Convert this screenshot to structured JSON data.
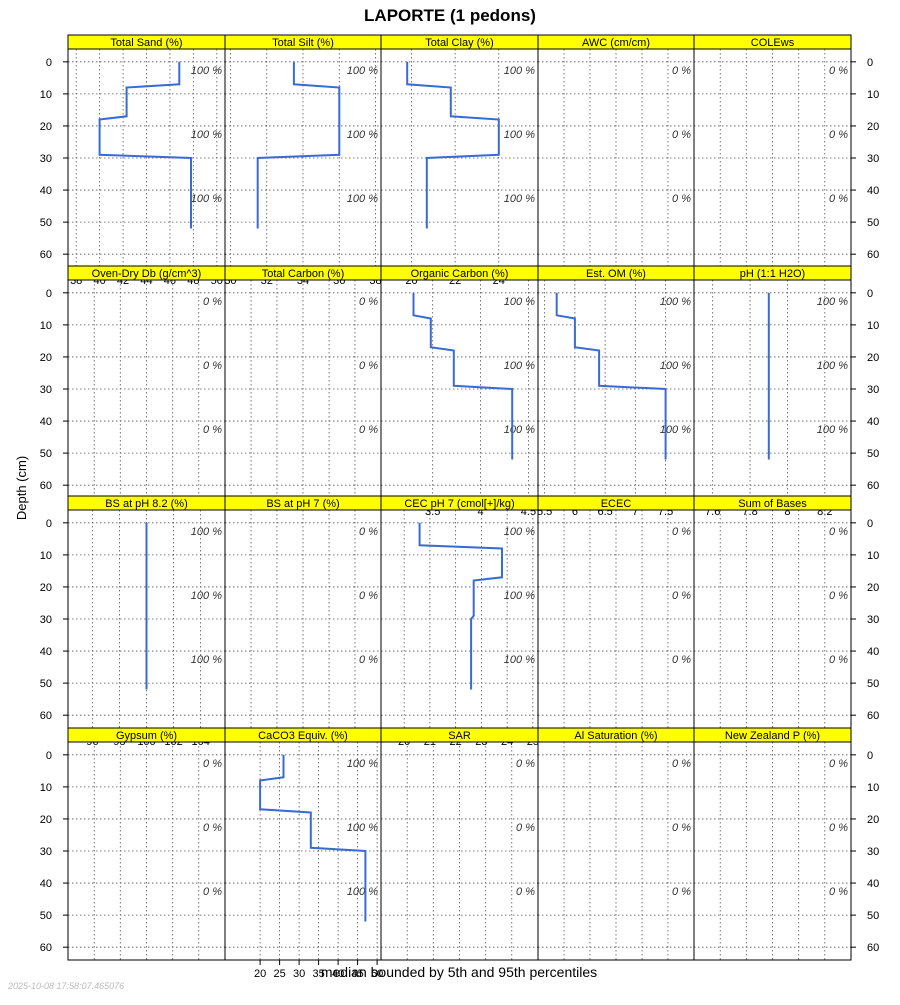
{
  "title": "LAPORTE (1 pedons)",
  "ylabel": "Depth (cm)",
  "xlabel": "median bounded by 5th and 95th percentiles",
  "timestamp": "2025-10-08 17:58:07.465076",
  "colors": {
    "strip_fill": "#ffff00",
    "line": "#3a6bd1",
    "grid": "#555555",
    "frame": "#000000",
    "pct_text": "#333333",
    "timestamp_text": "#bbbbbb"
  },
  "chart_data": {
    "type": "line",
    "layout": "lattice 5 columns x 4 rows",
    "y_axis": {
      "label": "Depth (cm)",
      "ylim": [
        64,
        -4
      ],
      "ticks": [
        0,
        10,
        20,
        30,
        40,
        50,
        60
      ]
    },
    "grid": true,
    "pct_label_depths": [
      2.5,
      22.5,
      42.5
    ],
    "panels": [
      {
        "title": "Total Sand (%)",
        "xlim": [
          37.3,
          50.7
        ],
        "xticks": [
          38,
          40,
          42,
          44,
          46,
          48,
          50
        ],
        "x": [
          46.8,
          46.8,
          42.3,
          42.3,
          40.0,
          40.0,
          47.8,
          47.8
        ],
        "y": [
          0,
          7,
          8,
          17,
          18,
          29,
          30,
          52
        ],
        "pct_labels": [
          "100 %",
          "100 %",
          "100 %"
        ]
      },
      {
        "title": "Total Silt (%)",
        "xlim": [
          29.7,
          38.3
        ],
        "xticks": [
          30,
          32,
          34,
          36,
          38
        ],
        "x": [
          33.5,
          33.5,
          36.0,
          36.0,
          36.0,
          36.0,
          31.5,
          31.5
        ],
        "y": [
          0,
          7,
          8,
          17,
          18,
          29,
          30,
          52
        ],
        "pct_labels": [
          "100 %",
          "100 %",
          "100 %"
        ]
      },
      {
        "title": "Total Clay (%)",
        "xlim": [
          18.6,
          25.8
        ],
        "xticks": [
          20,
          22,
          24
        ],
        "x": [
          19.8,
          19.8,
          21.8,
          21.8,
          24.0,
          24.0,
          20.7,
          20.7
        ],
        "y": [
          0,
          7,
          8,
          17,
          18,
          29,
          30,
          52
        ],
        "pct_labels": [
          "100 %",
          "100 %",
          "100 %"
        ]
      },
      {
        "title": "AWC (cm/cm)",
        "xlim": [
          0,
          1
        ],
        "xticks": [],
        "x": [],
        "y": [],
        "pct_labels": [
          "0 %",
          "0 %",
          "0 %"
        ]
      },
      {
        "title": "COLEws",
        "xlim": [
          0,
          1
        ],
        "xticks": [],
        "x": [],
        "y": [],
        "pct_labels": [
          "0 %",
          "0 %",
          "0 %"
        ]
      },
      {
        "title": "Oven-Dry Db (g/cm^3)",
        "xlim": [
          0,
          1
        ],
        "xticks": [],
        "x": [],
        "y": [],
        "pct_labels": [
          "0 %",
          "0 %",
          "0 %"
        ]
      },
      {
        "title": "Total Carbon (%)",
        "xlim": [
          0,
          1
        ],
        "xticks": [],
        "x": [],
        "y": [],
        "pct_labels": [
          "0 %",
          "0 %",
          "0 %"
        ]
      },
      {
        "title": "Organic Carbon (%)",
        "xlim": [
          2.96,
          4.6
        ],
        "xticks": [
          3.5,
          4.0,
          4.5
        ],
        "x": [
          3.3,
          3.3,
          3.48,
          3.48,
          3.72,
          3.72,
          4.33,
          4.33
        ],
        "y": [
          0,
          7,
          8,
          17,
          18,
          29,
          30,
          52
        ],
        "pct_labels": [
          "100 %",
          "100 %",
          "100 %"
        ]
      },
      {
        "title": "Est. OM (%)",
        "xlim": [
          5.39,
          7.97
        ],
        "xticks": [
          5.5,
          6.0,
          6.5,
          7.0,
          7.5
        ],
        "x": [
          5.7,
          5.7,
          6.0,
          6.0,
          6.4,
          6.4,
          7.5,
          7.5
        ],
        "y": [
          0,
          7,
          8,
          17,
          18,
          29,
          30,
          52
        ],
        "pct_labels": [
          "100 %",
          "100 %",
          "100 %"
        ]
      },
      {
        "title": "pH (1:1 H2O)",
        "xlim": [
          7.5,
          8.34
        ],
        "xticks": [
          7.6,
          7.8,
          8.0,
          8.2
        ],
        "x": [
          7.9,
          7.9
        ],
        "y": [
          0,
          52
        ],
        "pct_labels": [
          "100 %",
          "100 %",
          "100 %"
        ]
      },
      {
        "title": "BS at pH 8.2 (%)",
        "xlim": [
          94.2,
          105.8
        ],
        "xticks": [
          96,
          98,
          100,
          102,
          104
        ],
        "x": [
          100,
          100
        ],
        "y": [
          0,
          52
        ],
        "pct_labels": [
          "100 %",
          "100 %",
          "100 %"
        ]
      },
      {
        "title": "BS at pH 7 (%)",
        "xlim": [
          0,
          1
        ],
        "xticks": [],
        "x": [],
        "y": [],
        "pct_labels": [
          "0 %",
          "0 %",
          "0 %"
        ]
      },
      {
        "title": "CEC pH 7 (cmol[+]/kg)",
        "xlim": [
          19.1,
          25.2
        ],
        "xticks": [
          20,
          21,
          22,
          23,
          24,
          25
        ],
        "x": [
          20.6,
          20.6,
          23.8,
          23.8,
          22.7,
          22.7,
          22.6,
          22.6
        ],
        "y": [
          0,
          7,
          8,
          17,
          18,
          29,
          30,
          52
        ],
        "pct_labels": [
          "100 %",
          "100 %",
          "100 %"
        ]
      },
      {
        "title": "ECEC",
        "xlim": [
          0,
          1
        ],
        "xticks": [],
        "x": [],
        "y": [],
        "pct_labels": [
          "0 %",
          "0 %",
          "0 %"
        ]
      },
      {
        "title": "Sum of Bases",
        "xlim": [
          0,
          1
        ],
        "xticks": [],
        "x": [],
        "y": [],
        "pct_labels": [
          "0 %",
          "0 %",
          "0 %"
        ]
      },
      {
        "title": "Gypsum (%)",
        "xlim": [
          0,
          1
        ],
        "xticks": [],
        "x": [],
        "y": [],
        "pct_labels": [
          "0 %",
          "0 %",
          "0 %"
        ]
      },
      {
        "title": "CaCO3 Equiv. (%)",
        "xlim": [
          11,
          51
        ],
        "xticks": [
          20,
          25,
          30,
          35,
          40,
          45,
          50
        ],
        "x": [
          26,
          26,
          20,
          20,
          33,
          33,
          47,
          47
        ],
        "y": [
          0,
          7,
          8,
          17,
          18,
          29,
          30,
          52
        ],
        "pct_labels": [
          "100 %",
          "100 %",
          "100 %"
        ]
      },
      {
        "title": "SAR",
        "xlim": [
          0,
          1
        ],
        "xticks": [],
        "x": [],
        "y": [],
        "pct_labels": [
          "0 %",
          "0 %",
          "0 %"
        ]
      },
      {
        "title": "Al Saturation (%)",
        "xlim": [
          0,
          1
        ],
        "xticks": [],
        "x": [],
        "y": [],
        "pct_labels": [
          "0 %",
          "0 %",
          "0 %"
        ]
      },
      {
        "title": "New Zealand P (%)",
        "xlim": [
          0,
          1
        ],
        "xticks": [],
        "x": [],
        "y": [],
        "pct_labels": [
          "0 %",
          "0 %",
          "0 %"
        ]
      }
    ]
  }
}
